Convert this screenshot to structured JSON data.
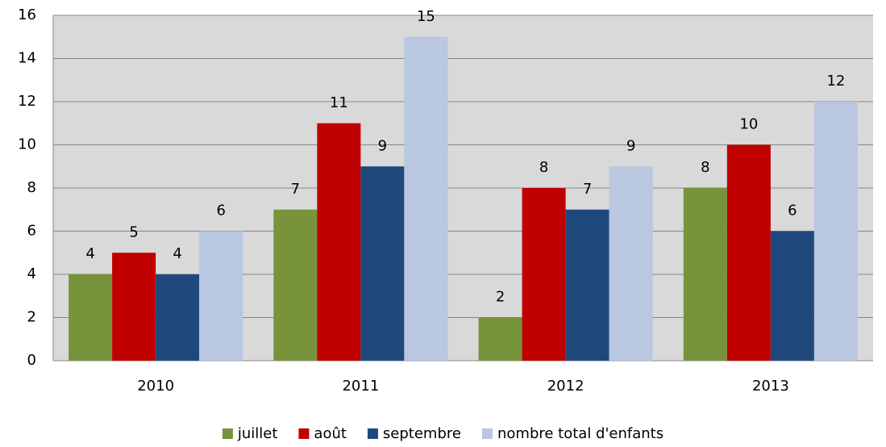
{
  "chart_data": {
    "type": "bar",
    "categories": [
      "2010",
      "2011",
      "2012",
      "2013"
    ],
    "series": [
      {
        "name": "juillet",
        "color": "#77933c",
        "values": [
          4,
          7,
          2,
          8
        ]
      },
      {
        "name": "août",
        "color": "#c00000",
        "values": [
          5,
          11,
          8,
          10
        ]
      },
      {
        "name": "septembre",
        "color": "#1f497d",
        "values": [
          4,
          9,
          7,
          6
        ]
      },
      {
        "name": "nombre total d'enfants",
        "color": "#b9c7e1",
        "values": [
          6,
          15,
          9,
          12
        ]
      }
    ],
    "ylim": [
      0,
      16
    ],
    "yticks": [
      0,
      2,
      4,
      6,
      8,
      10,
      12,
      14,
      16
    ],
    "grid": true,
    "legend": "bottom"
  }
}
